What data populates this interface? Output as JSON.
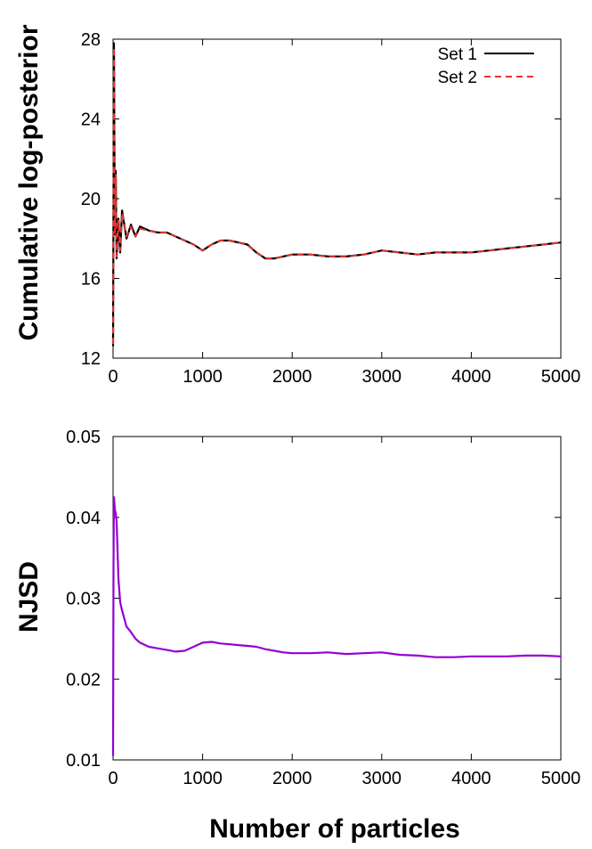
{
  "chart_data": [
    {
      "type": "line",
      "ylabel": "Cumulative log-posterior",
      "xlim": [
        0,
        5000
      ],
      "ylim": [
        12,
        28
      ],
      "xticks": [
        0,
        1000,
        2000,
        3000,
        4000,
        5000
      ],
      "yticks": [
        12,
        16,
        20,
        24,
        28
      ],
      "xtick_labels": [
        "0",
        "1000",
        "2000",
        "3000",
        "4000",
        "5000"
      ],
      "ytick_labels": [
        "12",
        "16",
        "20",
        "24",
        "28"
      ],
      "legend_position": "top-right",
      "grid": false,
      "series": [
        {
          "name": "Set 1",
          "color": "#000000",
          "style": "solid",
          "x": [
            0,
            10,
            20,
            30,
            40,
            60,
            80,
            100,
            150,
            200,
            250,
            300,
            400,
            500,
            600,
            700,
            800,
            900,
            1000,
            1100,
            1200,
            1300,
            1400,
            1500,
            1600,
            1700,
            1800,
            1900,
            2000,
            2200,
            2400,
            2600,
            2800,
            3000,
            3200,
            3400,
            3600,
            3800,
            4000,
            4200,
            4400,
            4600,
            4800,
            5000
          ],
          "y": [
            12.6,
            27.8,
            18.2,
            21.4,
            17.0,
            19.0,
            17.3,
            19.4,
            18.0,
            18.7,
            18.1,
            18.6,
            18.4,
            18.3,
            18.3,
            18.1,
            17.9,
            17.7,
            17.4,
            17.7,
            17.9,
            17.9,
            17.8,
            17.7,
            17.3,
            17.0,
            17.0,
            17.1,
            17.2,
            17.2,
            17.1,
            17.1,
            17.2,
            17.4,
            17.3,
            17.2,
            17.3,
            17.3,
            17.3,
            17.4,
            17.5,
            17.6,
            17.7,
            17.8
          ]
        },
        {
          "name": "Set 2",
          "color": "#e3342f",
          "style": "dashed",
          "x": [
            0,
            10,
            20,
            30,
            40,
            60,
            80,
            100,
            150,
            200,
            250,
            300,
            400,
            500,
            600,
            700,
            800,
            900,
            1000,
            1100,
            1200,
            1300,
            1400,
            1500,
            1600,
            1700,
            1800,
            1900,
            2000,
            2200,
            2400,
            2600,
            2800,
            3000,
            3200,
            3400,
            3600,
            3800,
            4000,
            4200,
            4400,
            4600,
            4800,
            5000
          ],
          "y": [
            12.7,
            27.6,
            18.3,
            21.2,
            17.1,
            18.9,
            17.4,
            19.3,
            18.1,
            18.6,
            18.1,
            18.5,
            18.4,
            18.3,
            18.3,
            18.1,
            17.9,
            17.7,
            17.4,
            17.7,
            17.9,
            17.9,
            17.8,
            17.7,
            17.3,
            17.0,
            17.0,
            17.1,
            17.2,
            17.2,
            17.1,
            17.1,
            17.2,
            17.4,
            17.3,
            17.2,
            17.3,
            17.3,
            17.3,
            17.4,
            17.5,
            17.6,
            17.7,
            17.8
          ]
        }
      ]
    },
    {
      "type": "line",
      "xlabel": "Number of particles",
      "ylabel": "NJSD",
      "xlim": [
        0,
        5000
      ],
      "ylim": [
        0.01,
        0.05
      ],
      "xticks": [
        0,
        1000,
        2000,
        3000,
        4000,
        5000
      ],
      "yticks": [
        0.01,
        0.02,
        0.03,
        0.04,
        0.05
      ],
      "xtick_labels": [
        "0",
        "1000",
        "2000",
        "3000",
        "4000",
        "5000"
      ],
      "ytick_labels": [
        "0.01",
        "0.02",
        "0.03",
        "0.04",
        "0.05"
      ],
      "grid": false,
      "series": [
        {
          "color": "#9400d3",
          "style": "solid",
          "x": [
            0,
            5,
            10,
            20,
            30,
            40,
            50,
            60,
            80,
            100,
            150,
            200,
            250,
            300,
            400,
            500,
            600,
            700,
            800,
            900,
            1000,
            1100,
            1200,
            1300,
            1400,
            1500,
            1600,
            1700,
            1800,
            1900,
            2000,
            2200,
            2400,
            2600,
            2800,
            3000,
            3200,
            3400,
            3600,
            3800,
            4000,
            4200,
            4400,
            4600,
            4800,
            5000
          ],
          "y": [
            0.0105,
            0.034,
            0.0425,
            0.041,
            0.0405,
            0.0395,
            0.036,
            0.0325,
            0.0295,
            0.0285,
            0.0265,
            0.0258,
            0.025,
            0.0245,
            0.024,
            0.0238,
            0.0236,
            0.0234,
            0.0235,
            0.024,
            0.0245,
            0.0246,
            0.0244,
            0.0243,
            0.0242,
            0.0241,
            0.024,
            0.0237,
            0.0235,
            0.0233,
            0.0232,
            0.0232,
            0.0233,
            0.0231,
            0.0232,
            0.0233,
            0.023,
            0.0229,
            0.0227,
            0.0227,
            0.0228,
            0.0228,
            0.0228,
            0.0229,
            0.0229,
            0.0228
          ]
        }
      ]
    }
  ]
}
